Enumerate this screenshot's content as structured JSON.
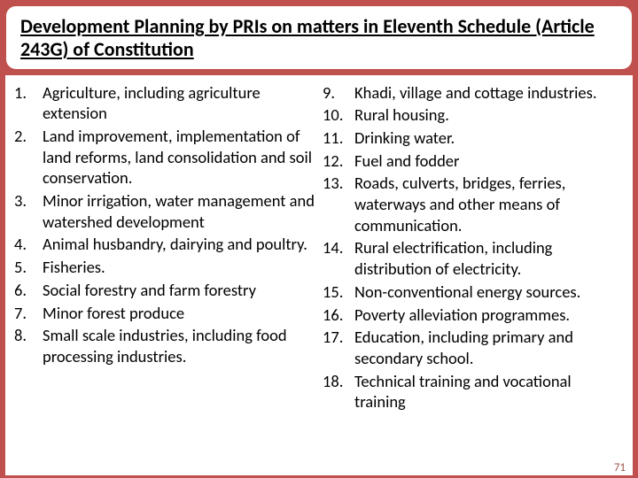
{
  "colors": {
    "background": "#c0504d",
    "panel": "#ffffff",
    "text": "#000000",
    "pagenum": "#9c5a4a"
  },
  "title": "Development Planning by PRIs on matters in Eleventh Schedule (Article 243G) of Constitution",
  "left": [
    {
      "n": "1.",
      "t": "Agriculture, including agriculture extension"
    },
    {
      "n": "2.",
      "t": "Land improvement, implementation of land reforms, land consolidation and soil conservation."
    },
    {
      "n": "3.",
      "t": "Minor irrigation, water management and watershed development"
    },
    {
      "n": "4.",
      "t": "Animal husbandry, dairying and poultry."
    },
    {
      "n": "5.",
      "t": "Fisheries."
    },
    {
      "n": "6.",
      "t": "Social forestry and farm forestry"
    },
    {
      "n": "7.",
      "t": "Minor forest produce"
    },
    {
      "n": "8.",
      "t": "Small scale industries, including food processing industries."
    }
  ],
  "right": [
    {
      "n": "9.",
      "t": "Khadi, village and cottage industries."
    },
    {
      "n": "10.",
      "t": "Rural housing."
    },
    {
      "n": "11.",
      "t": "Drinking water."
    },
    {
      "n": "12.",
      "t": "Fuel and fodder"
    },
    {
      "n": "13.",
      "t": "Roads, culverts, bridges, ferries, waterways and other means of communication."
    },
    {
      "n": "14.",
      "t": "Rural electrification, including distribution of electricity."
    },
    {
      "n": "15.",
      "t": "Non-conventional energy sources."
    },
    {
      "n": "16.",
      "t": "Poverty alleviation programmes."
    },
    {
      "n": "17.",
      "t": "Education, including primary and secondary school."
    },
    {
      "n": "18.",
      "t": "Technical training and vocational training"
    }
  ],
  "page_number": "71"
}
